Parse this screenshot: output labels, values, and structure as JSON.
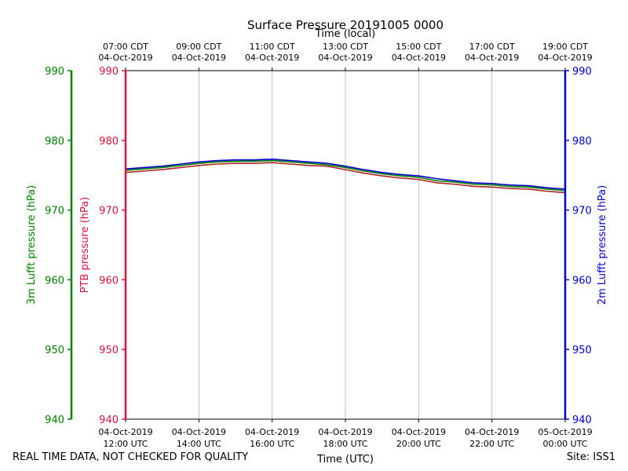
{
  "chart_data": {
    "type": "line",
    "title": "Surface Pressure 20191005 0000",
    "top_axis_label": "Time (local)",
    "bottom_axis_label": "Time (UTC)",
    "xlim_utc_hours": [
      12,
      24
    ],
    "bottom_ticks": [
      {
        "hour": 12,
        "line1": "04-Oct-2019",
        "line2": "12:00 UTC"
      },
      {
        "hour": 14,
        "line1": "04-Oct-2019",
        "line2": "14:00 UTC"
      },
      {
        "hour": 16,
        "line1": "04-Oct-2019",
        "line2": "16:00 UTC"
      },
      {
        "hour": 18,
        "line1": "04-Oct-2019",
        "line2": "18:00 UTC"
      },
      {
        "hour": 20,
        "line1": "04-Oct-2019",
        "line2": "20:00 UTC"
      },
      {
        "hour": 22,
        "line1": "04-Oct-2019",
        "line2": "22:00 UTC"
      },
      {
        "hour": 24,
        "line1": "05-Oct-2019",
        "line2": "00:00 UTC"
      }
    ],
    "top_ticks": [
      {
        "hour": 12,
        "line1": "07:00 CDT",
        "line2": "04-Oct-2019"
      },
      {
        "hour": 14,
        "line1": "09:00 CDT",
        "line2": "04-Oct-2019"
      },
      {
        "hour": 16,
        "line1": "11:00 CDT",
        "line2": "04-Oct-2019"
      },
      {
        "hour": 18,
        "line1": "13:00 CDT",
        "line2": "04-Oct-2019"
      },
      {
        "hour": 20,
        "line1": "15:00 CDT",
        "line2": "04-Oct-2019"
      },
      {
        "hour": 22,
        "line1": "17:00 CDT",
        "line2": "04-Oct-2019"
      },
      {
        "hour": 24,
        "line1": "19:00 CDT",
        "line2": "04-Oct-2019"
      }
    ],
    "y_axes": [
      {
        "id": "ptb",
        "label": "PTB pressure (hPa)",
        "color": "#dc143c",
        "ylim": [
          940,
          990
        ],
        "ticks": [
          940,
          950,
          960,
          970,
          980,
          990
        ]
      },
      {
        "id": "lufft3m",
        "label": "3m Lufft pressure (hPa)",
        "color": "#008000",
        "ylim": [
          940,
          990
        ],
        "ticks": [
          940,
          950,
          960,
          970,
          980,
          990
        ]
      },
      {
        "id": "lufft2m",
        "label": "2m Lufft pressure (hPa)",
        "color": "#0000cd",
        "ylim": [
          940,
          990
        ],
        "ticks": [
          940,
          950,
          960,
          970,
          980,
          990
        ]
      }
    ],
    "x": [
      12.0,
      12.5,
      13.0,
      13.5,
      14.0,
      14.5,
      15.0,
      15.5,
      16.0,
      16.5,
      17.0,
      17.5,
      18.0,
      18.5,
      19.0,
      19.5,
      20.0,
      20.5,
      21.0,
      21.5,
      22.0,
      22.5,
      23.0,
      23.5,
      24.0
    ],
    "series": [
      {
        "name": "PTB pressure",
        "axis": "ptb",
        "color": "#b22222",
        "values": [
          975.4,
          975.6,
          975.8,
          976.1,
          976.4,
          976.6,
          976.7,
          976.7,
          976.8,
          976.6,
          976.4,
          976.3,
          975.8,
          975.3,
          974.9,
          974.6,
          974.4,
          973.9,
          973.7,
          973.4,
          973.3,
          973.1,
          973.0,
          972.7,
          972.5
        ]
      },
      {
        "name": "3m Lufft pressure",
        "axis": "lufft3m",
        "color": "#008000",
        "values": [
          975.7,
          975.9,
          976.1,
          976.4,
          976.7,
          976.9,
          977.0,
          977.0,
          977.1,
          976.9,
          976.7,
          976.5,
          976.1,
          975.6,
          975.2,
          974.9,
          974.7,
          974.2,
          974.0,
          973.7,
          973.6,
          973.4,
          973.3,
          973.0,
          972.8
        ]
      },
      {
        "name": "2m Lufft pressure",
        "axis": "lufft2m",
        "color": "#0000cd",
        "values": [
          975.9,
          976.1,
          976.3,
          976.6,
          976.9,
          977.1,
          977.2,
          977.2,
          977.3,
          977.1,
          976.9,
          976.7,
          976.3,
          975.8,
          975.4,
          975.1,
          974.9,
          974.5,
          974.2,
          973.9,
          973.8,
          973.6,
          973.5,
          973.2,
          973.0
        ]
      }
    ],
    "grid": "vertical"
  },
  "footer": {
    "left_text": "REAL TIME DATA, NOT CHECKED FOR QUALITY",
    "right_text": "Site: ISS1"
  }
}
